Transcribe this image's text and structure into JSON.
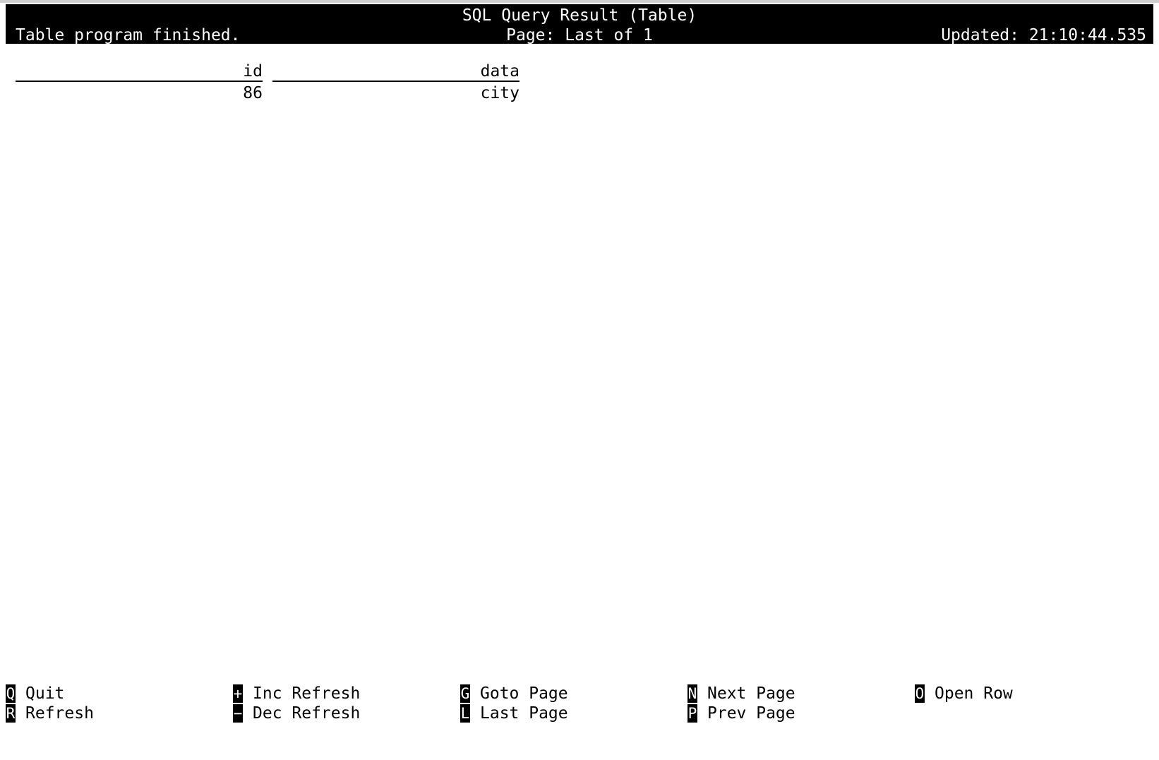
{
  "header": {
    "title": "SQL Query Result (Table)",
    "status": "Table program finished.",
    "page": "Page: Last of 1",
    "updated": "Updated: 21:10:44.535"
  },
  "table": {
    "columns": [
      "id",
      "data"
    ],
    "rows": [
      [
        "86",
        "city"
      ]
    ]
  },
  "footer": {
    "items": [
      {
        "key": "Q",
        "label": "Quit"
      },
      {
        "key": "R",
        "label": "Refresh"
      },
      {
        "key": "+",
        "label": "Inc Refresh"
      },
      {
        "key": "−",
        "label": "Dec Refresh"
      },
      {
        "key": "G",
        "label": "Goto Page"
      },
      {
        "key": "L",
        "label": "Last Page"
      },
      {
        "key": "N",
        "label": "Next Page"
      },
      {
        "key": "P",
        "label": "Prev Page"
      },
      {
        "key": "O",
        "label": "Open Row"
      }
    ]
  }
}
